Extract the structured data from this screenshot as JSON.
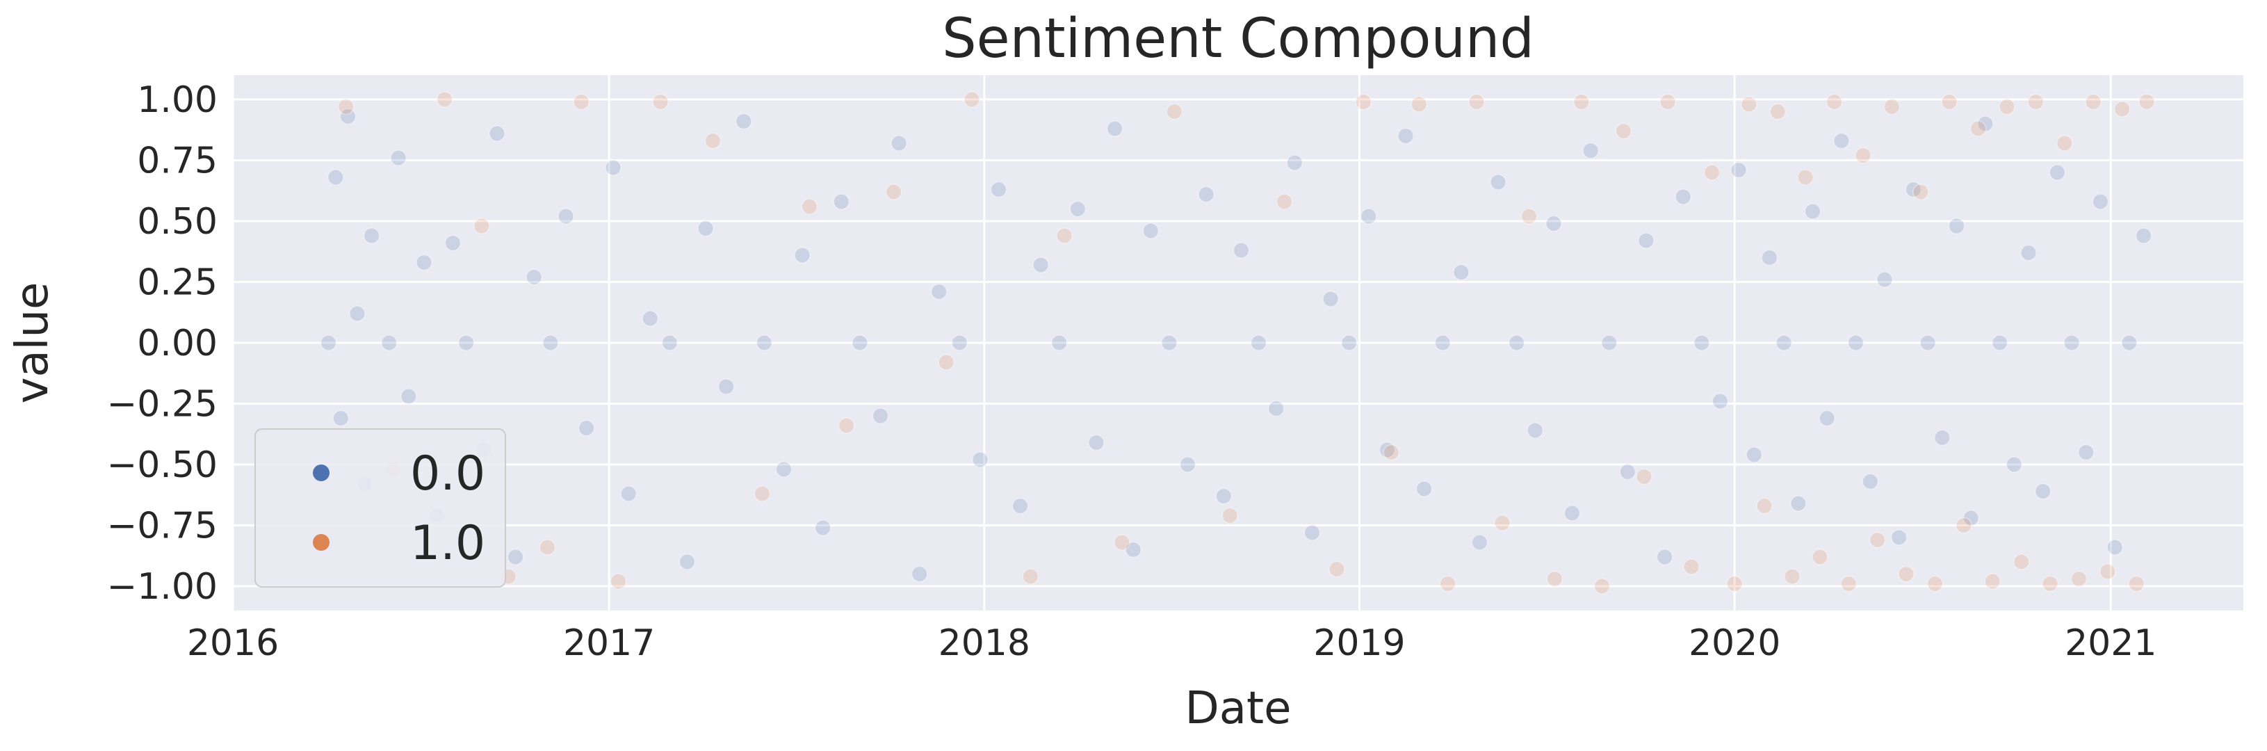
{
  "chart_data": {
    "type": "scatter",
    "title": "Sentiment Compound",
    "xlabel": "Date",
    "ylabel": "value",
    "x_axis": "date",
    "xlim": [
      "2016-01-01",
      "2021-05-10"
    ],
    "ylim": [
      -1.1,
      1.1
    ],
    "xticks": [
      "2016-01-01",
      "2017-01-01",
      "2018-01-01",
      "2019-01-01",
      "2020-01-01",
      "2021-01-01"
    ],
    "xtick_labels": [
      "2016",
      "2017",
      "2018",
      "2019",
      "2020",
      "2021"
    ],
    "yticks": [
      1.0,
      0.75,
      0.5,
      0.25,
      0.0,
      -0.25,
      -0.5,
      -0.75,
      -1.0
    ],
    "ytick_labels": [
      "1.00",
      "0.75",
      "0.50",
      "0.25",
      "0.00",
      "−0.25",
      "−0.50",
      "−0.75",
      "−1.00"
    ],
    "grid": true,
    "background": "#EAEAF2",
    "legend_position": "lower-left",
    "marker_alpha": 0.2,
    "series": [
      {
        "name": "0.0",
        "color": "#4C72B0",
        "points": [
          [
            "2016-04-03",
            0.0
          ],
          [
            "2016-04-10",
            0.68
          ],
          [
            "2016-04-15",
            -0.31
          ],
          [
            "2016-04-22",
            0.93
          ],
          [
            "2016-05-01",
            0.12
          ],
          [
            "2016-05-08",
            -0.58
          ],
          [
            "2016-05-15",
            0.44
          ],
          [
            "2016-06-01",
            0.0
          ],
          [
            "2016-06-10",
            0.76
          ],
          [
            "2016-06-20",
            -0.22
          ],
          [
            "2016-07-05",
            0.33
          ],
          [
            "2016-07-18",
            -0.71
          ],
          [
            "2016-08-02",
            0.41
          ],
          [
            "2016-08-15",
            0.0
          ],
          [
            "2016-09-01",
            -0.44
          ],
          [
            "2016-09-14",
            0.86
          ],
          [
            "2016-10-02",
            -0.88
          ],
          [
            "2016-10-20",
            0.27
          ],
          [
            "2016-11-05",
            0.0
          ],
          [
            "2016-11-20",
            0.52
          ],
          [
            "2016-12-10",
            -0.35
          ],
          [
            "2017-01-05",
            0.72
          ],
          [
            "2017-01-20",
            -0.62
          ],
          [
            "2017-02-10",
            0.1
          ],
          [
            "2017-03-01",
            0.0
          ],
          [
            "2017-03-18",
            -0.9
          ],
          [
            "2017-04-05",
            0.47
          ],
          [
            "2017-04-25",
            -0.18
          ],
          [
            "2017-05-12",
            0.91
          ],
          [
            "2017-06-01",
            0.0
          ],
          [
            "2017-06-20",
            -0.52
          ],
          [
            "2017-07-08",
            0.36
          ],
          [
            "2017-07-28",
            -0.76
          ],
          [
            "2017-08-15",
            0.58
          ],
          [
            "2017-09-02",
            0.0
          ],
          [
            "2017-09-22",
            -0.3
          ],
          [
            "2017-10-10",
            0.82
          ],
          [
            "2017-10-30",
            -0.95
          ],
          [
            "2017-11-18",
            0.21
          ],
          [
            "2017-12-08",
            0.0
          ],
          [
            "2017-12-28",
            -0.48
          ],
          [
            "2018-01-15",
            0.63
          ],
          [
            "2018-02-05",
            -0.67
          ],
          [
            "2018-02-25",
            0.32
          ],
          [
            "2018-03-15",
            0.0
          ],
          [
            "2018-04-02",
            0.55
          ],
          [
            "2018-04-20",
            -0.41
          ],
          [
            "2018-05-08",
            0.88
          ],
          [
            "2018-05-26",
            -0.85
          ],
          [
            "2018-06-12",
            0.46
          ],
          [
            "2018-06-30",
            0.0
          ],
          [
            "2018-07-18",
            -0.5
          ],
          [
            "2018-08-05",
            0.61
          ],
          [
            "2018-08-22",
            -0.63
          ],
          [
            "2018-09-08",
            0.38
          ],
          [
            "2018-09-25",
            0.0
          ],
          [
            "2018-10-12",
            -0.27
          ],
          [
            "2018-10-30",
            0.74
          ],
          [
            "2018-11-16",
            -0.78
          ],
          [
            "2018-12-04",
            0.18
          ],
          [
            "2018-12-22",
            0.0
          ],
          [
            "2019-01-10",
            0.52
          ],
          [
            "2019-01-28",
            -0.44
          ],
          [
            "2019-02-15",
            0.85
          ],
          [
            "2019-03-05",
            -0.6
          ],
          [
            "2019-03-23",
            0.0
          ],
          [
            "2019-04-10",
            0.29
          ],
          [
            "2019-04-28",
            -0.82
          ],
          [
            "2019-05-16",
            0.66
          ],
          [
            "2019-06-03",
            0.0
          ],
          [
            "2019-06-21",
            -0.36
          ],
          [
            "2019-07-09",
            0.49
          ],
          [
            "2019-07-27",
            -0.7
          ],
          [
            "2019-08-14",
            0.79
          ],
          [
            "2019-09-01",
            0.0
          ],
          [
            "2019-09-19",
            -0.53
          ],
          [
            "2019-10-07",
            0.42
          ],
          [
            "2019-10-25",
            -0.88
          ],
          [
            "2019-11-12",
            0.6
          ],
          [
            "2019-11-30",
            0.0
          ],
          [
            "2019-12-18",
            -0.24
          ],
          [
            "2020-01-05",
            0.71
          ],
          [
            "2020-01-20",
            -0.46
          ],
          [
            "2020-02-04",
            0.35
          ],
          [
            "2020-02-18",
            0.0
          ],
          [
            "2020-03-03",
            -0.66
          ],
          [
            "2020-03-17",
            0.54
          ],
          [
            "2020-03-31",
            -0.31
          ],
          [
            "2020-04-14",
            0.83
          ],
          [
            "2020-04-28",
            0.0
          ],
          [
            "2020-05-12",
            -0.57
          ],
          [
            "2020-05-26",
            0.26
          ],
          [
            "2020-06-09",
            -0.8
          ],
          [
            "2020-06-23",
            0.63
          ],
          [
            "2020-07-07",
            0.0
          ],
          [
            "2020-07-21",
            -0.39
          ],
          [
            "2020-08-04",
            0.48
          ],
          [
            "2020-08-18",
            -0.72
          ],
          [
            "2020-09-01",
            0.9
          ],
          [
            "2020-09-15",
            0.0
          ],
          [
            "2020-09-29",
            -0.5
          ],
          [
            "2020-10-13",
            0.37
          ],
          [
            "2020-10-27",
            -0.61
          ],
          [
            "2020-11-10",
            0.7
          ],
          [
            "2020-11-24",
            0.0
          ],
          [
            "2020-12-08",
            -0.45
          ],
          [
            "2020-12-22",
            0.58
          ],
          [
            "2021-01-05",
            -0.84
          ],
          [
            "2021-01-19",
            0.0
          ],
          [
            "2021-02-02",
            0.44
          ]
        ]
      },
      {
        "name": "1.0",
        "color": "#DD8452",
        "points": [
          [
            "2016-04-20",
            0.97
          ],
          [
            "2016-06-05",
            -0.52
          ],
          [
            "2016-07-25",
            1.0
          ],
          [
            "2016-08-30",
            0.48
          ],
          [
            "2016-09-25",
            -0.96
          ],
          [
            "2016-11-02",
            -0.84
          ],
          [
            "2016-12-05",
            0.99
          ],
          [
            "2017-01-10",
            -0.98
          ],
          [
            "2017-02-20",
            0.99
          ],
          [
            "2017-04-12",
            0.83
          ],
          [
            "2017-05-30",
            -0.62
          ],
          [
            "2017-07-15",
            0.56
          ],
          [
            "2017-08-20",
            -0.34
          ],
          [
            "2017-10-05",
            0.62
          ],
          [
            "2017-11-25",
            -0.08
          ],
          [
            "2017-12-20",
            1.0
          ],
          [
            "2018-02-15",
            -0.96
          ],
          [
            "2018-03-20",
            0.44
          ],
          [
            "2018-05-15",
            -0.82
          ],
          [
            "2018-07-05",
            0.95
          ],
          [
            "2018-08-28",
            -0.71
          ],
          [
            "2018-10-20",
            0.58
          ],
          [
            "2018-12-10",
            -0.93
          ],
          [
            "2019-01-05",
            0.99
          ],
          [
            "2019-02-01",
            -0.45
          ],
          [
            "2019-02-28",
            0.98
          ],
          [
            "2019-03-28",
            -0.99
          ],
          [
            "2019-04-25",
            0.99
          ],
          [
            "2019-05-20",
            -0.74
          ],
          [
            "2019-06-15",
            0.52
          ],
          [
            "2019-07-10",
            -0.97
          ],
          [
            "2019-08-05",
            0.99
          ],
          [
            "2019-08-25",
            -1.0
          ],
          [
            "2019-09-15",
            0.87
          ],
          [
            "2019-10-05",
            -0.55
          ],
          [
            "2019-10-28",
            0.99
          ],
          [
            "2019-11-20",
            -0.92
          ],
          [
            "2019-12-10",
            0.7
          ],
          [
            "2020-01-01",
            -0.99
          ],
          [
            "2020-01-15",
            0.98
          ],
          [
            "2020-01-30",
            -0.67
          ],
          [
            "2020-02-12",
            0.95
          ],
          [
            "2020-02-26",
            -0.96
          ],
          [
            "2020-03-10",
            0.68
          ],
          [
            "2020-03-24",
            -0.88
          ],
          [
            "2020-04-07",
            0.99
          ],
          [
            "2020-04-21",
            -0.99
          ],
          [
            "2020-05-05",
            0.77
          ],
          [
            "2020-05-19",
            -0.81
          ],
          [
            "2020-06-02",
            0.97
          ],
          [
            "2020-06-16",
            -0.95
          ],
          [
            "2020-06-30",
            0.62
          ],
          [
            "2020-07-14",
            -0.99
          ],
          [
            "2020-07-28",
            0.99
          ],
          [
            "2020-08-11",
            -0.75
          ],
          [
            "2020-08-25",
            0.88
          ],
          [
            "2020-09-08",
            -0.98
          ],
          [
            "2020-09-22",
            0.97
          ],
          [
            "2020-10-06",
            -0.9
          ],
          [
            "2020-10-20",
            0.99
          ],
          [
            "2020-11-03",
            -0.99
          ],
          [
            "2020-11-17",
            0.82
          ],
          [
            "2020-12-01",
            -0.97
          ],
          [
            "2020-12-15",
            0.99
          ],
          [
            "2020-12-29",
            -0.94
          ],
          [
            "2021-01-12",
            0.96
          ],
          [
            "2021-01-26",
            -0.99
          ],
          [
            "2021-02-05",
            0.99
          ]
        ]
      }
    ]
  }
}
